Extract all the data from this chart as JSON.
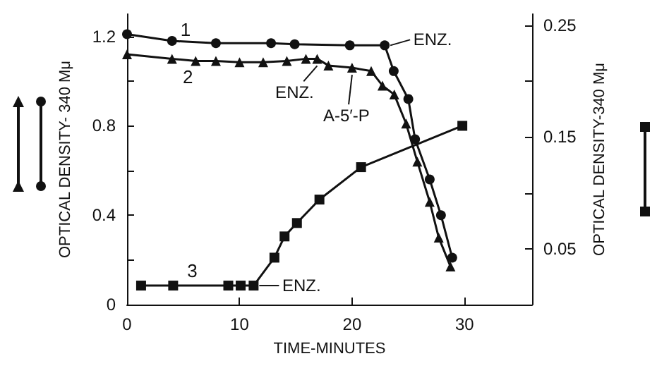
{
  "chart_data": {
    "type": "line",
    "xlabel": "TIME-MINUTES",
    "ylabel": "OPTICAL DENSITY- 340 Mμ",
    "y2label": "OPTICAL DENSITY-340 Mμ",
    "xlim": [
      0,
      36
    ],
    "xticks": [
      0,
      10,
      20,
      30
    ],
    "ylim": [
      0,
      1.3
    ],
    "yticks": [
      0,
      {
        "value": 0.2,
        "label": null
      },
      0.4,
      {
        "value": 0.6,
        "label": null
      },
      0.8,
      {
        "value": 1.0,
        "label": null
      },
      1.2
    ],
    "y2lim": [
      0,
      0.26
    ],
    "y2ticks": [
      {
        "value": 0,
        "label": null
      },
      0.05,
      {
        "value": 0.1,
        "label": null
      },
      0.15,
      {
        "value": 0.2,
        "label": null
      },
      0.25
    ],
    "grid": false,
    "legend": false,
    "line_style": "solid",
    "series": [
      {
        "name": "1",
        "color": "#111111",
        "marker": "circle",
        "x": [
          0,
          4,
          7.9,
          12.8,
          14.9,
          19.8,
          22.9,
          23.7,
          25,
          25.6,
          26.9,
          27.9,
          28.9
        ],
        "values": [
          1.21,
          1.18,
          1.17,
          1.17,
          1.165,
          1.16,
          1.16,
          1.045,
          0.92,
          0.74,
          0.56,
          0.4,
          0.21
        ]
      },
      {
        "name": "2",
        "color": "#111111",
        "marker": "triangle",
        "x": [
          0,
          4,
          6.1,
          7.9,
          10,
          12.1,
          14.2,
          15.9,
          16.9,
          17.9,
          20,
          21.7,
          22.7,
          23.75,
          24.8,
          25.8,
          26.9,
          27.7,
          28.75
        ],
        "values": [
          1.12,
          1.1,
          1.09,
          1.09,
          1.085,
          1.085,
          1.09,
          1.1,
          1.1,
          1.07,
          1.06,
          1.045,
          0.98,
          0.94,
          0.81,
          0.64,
          0.46,
          0.3,
          0.17
        ]
      },
      {
        "name": "3",
        "color": "#111111",
        "marker": "square",
        "axis": "y2",
        "x": [
          1.25,
          4.1,
          9,
          10.1,
          11.25,
          13.1,
          14,
          15.1,
          17.1,
          20.8,
          29.8
        ],
        "values": [
          0.017,
          0.017,
          0.017,
          0.017,
          0.017,
          0.042,
          0.061,
          0.073,
          0.094,
          0.123,
          0.16
        ]
      }
    ],
    "annotations": [
      {
        "text": "ENZ.",
        "x": 16.9,
        "y": 1.1
      },
      {
        "text": "A-5′-P",
        "x": 20,
        "y": 1.06
      },
      {
        "text": "ENZ.",
        "x": 22.9,
        "y": 1.16
      },
      {
        "text": "ENZ.",
        "x": 11.25,
        "y": 0.085
      }
    ]
  }
}
